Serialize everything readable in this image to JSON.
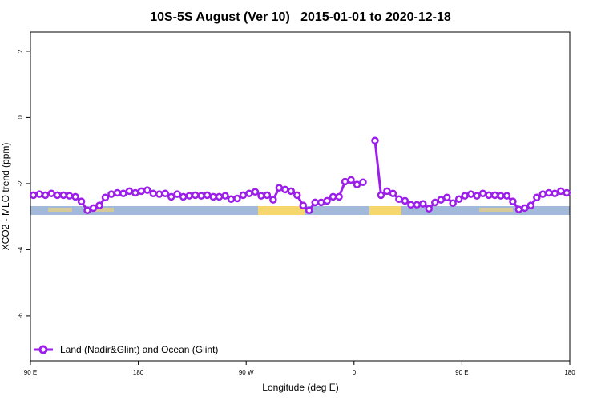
{
  "chart_data": {
    "type": "line",
    "title": "10S-5S August (Ver 10)   2015-01-01 to 2020-12-18",
    "x_label": "Longitude (deg E)",
    "y_label": "XCO2 - MLO trend (ppm)",
    "xlim": [
      90,
      540
    ],
    "ylim": [
      -7.36,
      2.58
    ],
    "xticks": [
      {
        "value": 90,
        "label": "90 E"
      },
      180,
      {
        "value": 270,
        "label": "90 W"
      },
      {
        "value": 360,
        "label": "0"
      },
      {
        "value": 450,
        "label": "90 E"
      },
      {
        "value": 540,
        "label": "180"
      }
    ],
    "yticks": [
      2,
      0,
      -2,
      -4,
      -6
    ],
    "legend": "bottom-left",
    "x": [
      92.5,
      97.5,
      102.5,
      107.5,
      112.5,
      117.5,
      122.5,
      127.5,
      132.5,
      137.5,
      142.5,
      147.5,
      152.5,
      157.5,
      162.5,
      167.5,
      172.5,
      177.5,
      182.5,
      187.5,
      192.5,
      197.5,
      202.5,
      207.5,
      212.5,
      217.5,
      222.5,
      227.5,
      232.5,
      237.5,
      242.5,
      247.5,
      252.5,
      257.5,
      262.5,
      267.5,
      272.5,
      277.5,
      282.5,
      287.5,
      292.5,
      297.5,
      302.5,
      307.5,
      312.5,
      317.5,
      322.5,
      327.5,
      332.5,
      337.5,
      342.5,
      347.5,
      352.5,
      357.5,
      362.5,
      367.5,
      372.5,
      377.5,
      382.5,
      387.5,
      392.5,
      397.5,
      402.5,
      407.5,
      412.5,
      417.5,
      422.5,
      427.5,
      432.5,
      437.5,
      442.5,
      447.5,
      452.5,
      457.5,
      462.5,
      467.5,
      472.5,
      477.5,
      482.5,
      487.5,
      492.5,
      497.5,
      502.5,
      507.5,
      512.5,
      517.5,
      522.5,
      527.5,
      532.5,
      537.5
    ],
    "series": [
      {
        "name": "Land (Nadir&Glint) and Ocean (Glint)",
        "color": "#9b1fe8",
        "values": [
          -2.35,
          -2.32,
          -2.35,
          -2.3,
          -2.35,
          -2.35,
          -2.37,
          -2.4,
          -2.54,
          -2.81,
          -2.74,
          -2.66,
          -2.42,
          -2.32,
          -2.28,
          -2.3,
          -2.23,
          -2.28,
          -2.23,
          -2.2,
          -2.3,
          -2.32,
          -2.3,
          -2.4,
          -2.32,
          -2.4,
          -2.37,
          -2.35,
          -2.37,
          -2.35,
          -2.4,
          -2.4,
          -2.37,
          -2.47,
          -2.45,
          -2.35,
          -2.3,
          -2.25,
          -2.37,
          -2.35,
          -2.49,
          -2.13,
          -2.18,
          -2.23,
          -2.35,
          -2.66,
          -2.81,
          -2.57,
          -2.57,
          -2.52,
          -2.4,
          -2.4,
          -1.94,
          -1.89,
          -2.03,
          -1.96,
          null,
          -0.7,
          -2.35,
          -2.23,
          -2.3,
          -2.47,
          -2.52,
          -2.64,
          -2.64,
          -2.61,
          -2.76,
          -2.57,
          -2.49,
          -2.42,
          -2.59,
          -2.47,
          -2.37,
          -2.32,
          -2.37,
          -2.3,
          -2.35,
          -2.35,
          -2.37,
          -2.37,
          -2.54,
          -2.78,
          -2.74,
          -2.66,
          -2.42,
          -2.32,
          -2.28,
          -2.3,
          -2.23,
          -2.28
        ]
      }
    ]
  }
}
